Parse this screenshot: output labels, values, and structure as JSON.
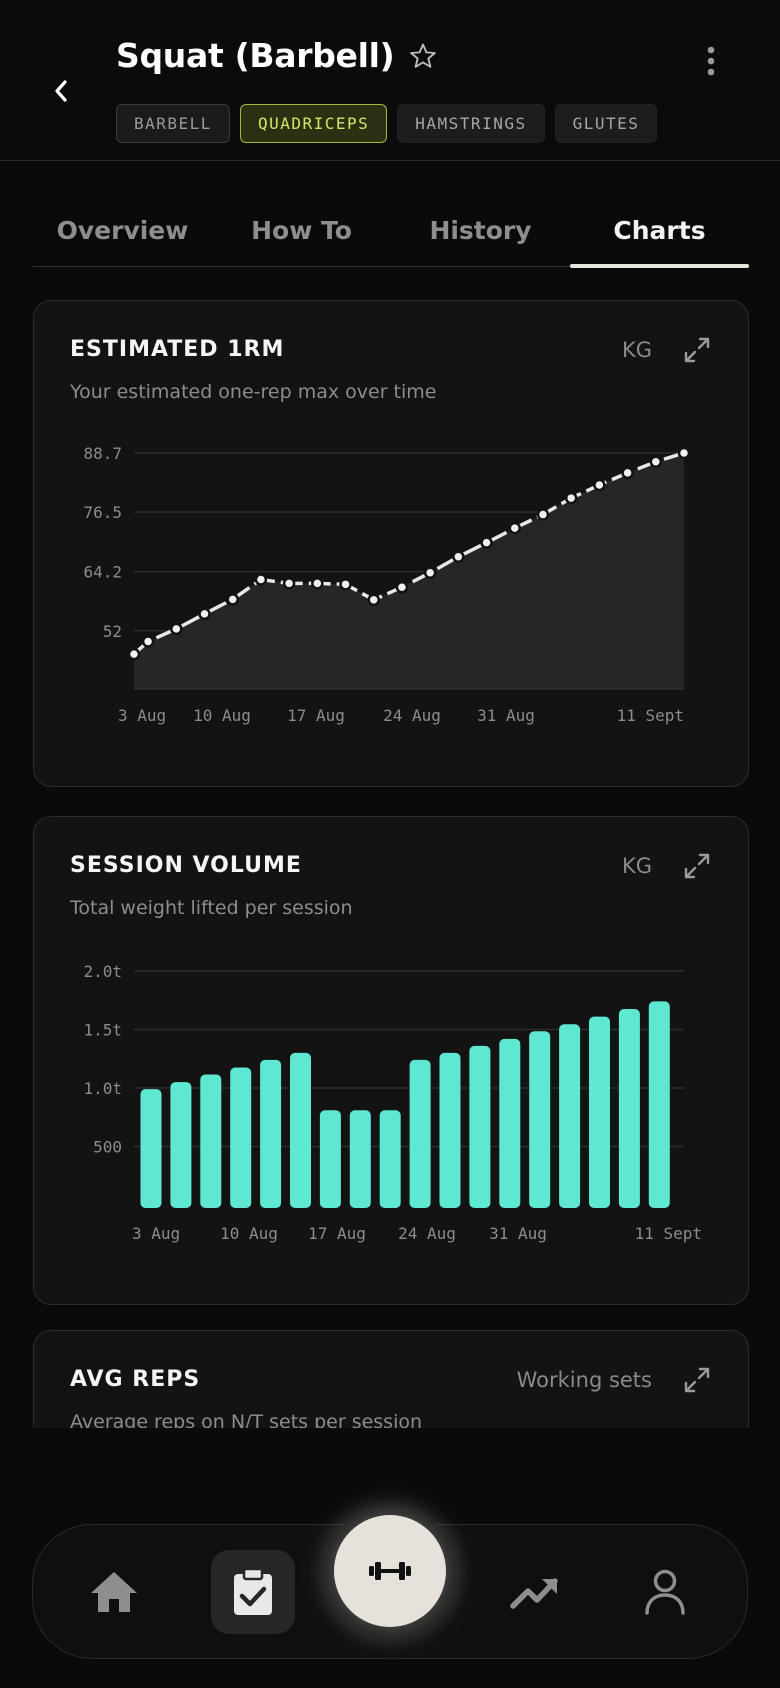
{
  "header": {
    "title": "Squat (Barbell)",
    "tags": [
      {
        "label": "BARBELL",
        "state": "default"
      },
      {
        "label": "QUADRICEPS",
        "state": "active"
      },
      {
        "label": "HAMSTRINGS",
        "state": "plain"
      },
      {
        "label": "GLUTES",
        "state": "plain"
      }
    ]
  },
  "tabs": [
    {
      "label": "Overview"
    },
    {
      "label": "How To"
    },
    {
      "label": "History"
    },
    {
      "label": "Charts",
      "active": true
    }
  ],
  "cards": {
    "estimated_1rm": {
      "title": "ESTIMATED 1RM",
      "unit": "KG",
      "subtitle": "Your estimated one-rep max over time"
    },
    "session_volume": {
      "title": "SESSION VOLUME",
      "unit": "KG",
      "subtitle": "Total weight lifted per session"
    },
    "avg_reps": {
      "title": "AVG REPS",
      "unit": "Working sets",
      "subtitle": "Average reps on N/T sets per session"
    }
  },
  "chart_data": [
    {
      "type": "area",
      "x_tick_labels": [
        "3 Aug",
        "10 Aug",
        "17 Aug",
        "24 Aug",
        "31 Aug",
        "11 Sept"
      ],
      "y_tick_labels": [
        "52",
        "64.2",
        "76.5",
        "88.7"
      ],
      "y_ticks": [
        52,
        64.2,
        76.5,
        88.7
      ],
      "ylim": [
        40,
        88.7
      ],
      "x": [
        "3 Aug",
        "4 Aug",
        "6 Aug",
        "8 Aug",
        "10 Aug",
        "12 Aug",
        "14 Aug",
        "16 Aug",
        "18 Aug",
        "20 Aug",
        "22 Aug",
        "24 Aug",
        "26 Aug",
        "28 Aug",
        "30 Aug",
        "1 Sept",
        "3 Sept",
        "5 Sept",
        "7 Sept",
        "9 Sept",
        "11 Sept"
      ],
      "x_index": [
        0,
        1,
        3,
        5,
        7,
        9,
        11,
        13,
        15,
        17,
        19,
        21,
        23,
        25,
        27,
        29,
        31,
        33,
        35,
        37,
        39
      ],
      "values": [
        47.2,
        49.8,
        52.4,
        55.5,
        58.5,
        62.6,
        61.8,
        61.8,
        61.6,
        58.4,
        61.0,
        64.0,
        67.3,
        70.2,
        73.2,
        76.0,
        79.4,
        82.1,
        84.6,
        86.9,
        89.0
      ],
      "color": "#e8e8e8",
      "grid": true
    },
    {
      "type": "bar",
      "x_tick_labels": [
        "3 Aug",
        "10 Aug",
        "17 Aug",
        "24 Aug",
        "31 Aug",
        "11 Sept"
      ],
      "y_tick_labels": [
        "500",
        "1.0t",
        "1.5t",
        "2.0t"
      ],
      "y_ticks": [
        500,
        1000,
        1500,
        2000
      ],
      "ylim": [
        0,
        2000
      ],
      "values": [
        990,
        1050,
        1115,
        1175,
        1240,
        1300,
        810,
        810,
        810,
        1240,
        1300,
        1360,
        1420,
        1485,
        1545,
        1610,
        1675,
        1740
      ],
      "color": "#5ee8d2",
      "grid": true
    }
  ],
  "nav": {
    "items": [
      {
        "name": "home-icon",
        "active": false
      },
      {
        "name": "clipboard-check-icon",
        "active": true
      },
      {
        "name": "dumbbell-icon",
        "center": true
      },
      {
        "name": "trending-up-icon",
        "active": false
      },
      {
        "name": "user-icon",
        "active": false
      }
    ]
  },
  "colors": {
    "accent_teal": "#5ee8d2",
    "tag_active": "#cfe86a",
    "background": "#0a0a0a",
    "card": "#131313"
  }
}
